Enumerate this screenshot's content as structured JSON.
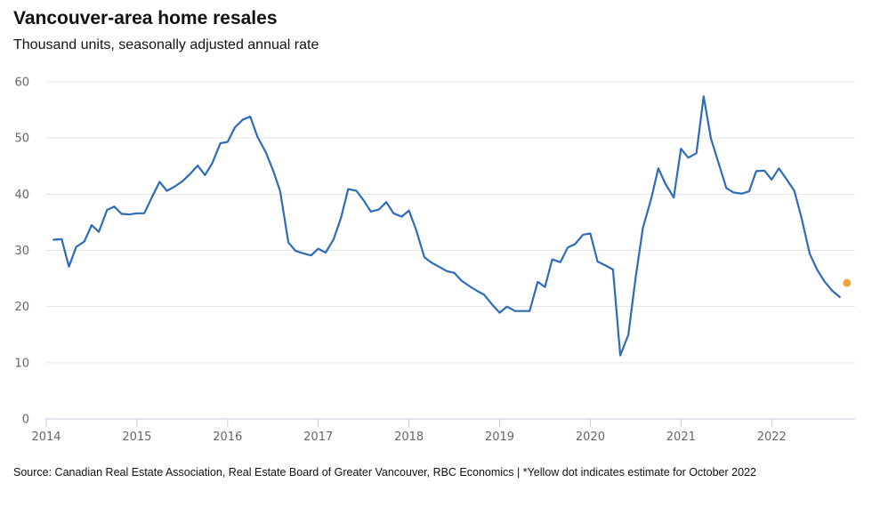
{
  "chart_data": {
    "type": "line",
    "title": "Vancouver-area home resales",
    "subtitle": "Thousand units, seasonally adjusted annual rate",
    "source": "Source: Canadian Real Estate Association, Real Estate Board of Greater Vancouver, RBC Economics | *Yellow dot indicates estimate for October 2022",
    "xlabel": "",
    "ylabel": "",
    "xlim": [
      2014,
      2022.92
    ],
    "ylim": [
      0,
      60
    ],
    "y_ticks": [
      0,
      10,
      20,
      30,
      40,
      50,
      60
    ],
    "x_ticks": [
      2014,
      2015,
      2016,
      2017,
      2018,
      2019,
      2020,
      2021,
      2022
    ],
    "x_tick_labels": [
      "2014",
      "2015",
      "2016",
      "2017",
      "2018",
      "2019",
      "2020",
      "2021",
      "2022"
    ],
    "grid": "horizontal",
    "colors": {
      "series": "#2e6bb8",
      "estimate": "#f0a33a",
      "grid": "#e3e3e3",
      "axis": "#c5cbe0"
    },
    "series": [
      {
        "x": [
          2014.08,
          2014.17,
          2014.25,
          2014.33,
          2014.42,
          2014.5,
          2014.58,
          2014.67,
          2014.75,
          2014.83,
          2014.92,
          2015.0,
          2015.08,
          2015.17,
          2015.25,
          2015.33,
          2015.42,
          2015.5,
          2015.58,
          2015.67,
          2015.75,
          2015.83,
          2015.92,
          2016.0,
          2016.08,
          2016.17,
          2016.25,
          2016.33,
          2016.42,
          2016.5,
          2016.58,
          2016.67,
          2016.75,
          2016.83,
          2016.92,
          2017.0,
          2017.08,
          2017.17,
          2017.25,
          2017.33,
          2017.42,
          2017.5,
          2017.58,
          2017.67,
          2017.75,
          2017.83,
          2017.92,
          2018.0,
          2018.08,
          2018.17,
          2018.25,
          2018.33,
          2018.42,
          2018.5,
          2018.58,
          2018.67,
          2018.75,
          2018.83,
          2018.92,
          2019.0,
          2019.08,
          2019.17,
          2019.25,
          2019.33,
          2019.42,
          2019.5,
          2019.58,
          2019.67,
          2019.75,
          2019.83,
          2019.92,
          2020.0,
          2020.08,
          2020.17,
          2020.25,
          2020.33,
          2020.42,
          2020.5,
          2020.58,
          2020.67,
          2020.75,
          2020.83,
          2020.92,
          2021.0,
          2021.08,
          2021.17,
          2021.25,
          2021.33,
          2021.42,
          2021.5,
          2021.58,
          2021.67,
          2021.75,
          2021.83,
          2021.92,
          2022.0,
          2022.08,
          2022.17,
          2022.25,
          2022.33,
          2022.42,
          2022.5,
          2022.58,
          2022.67,
          2022.75
        ],
        "values": [
          31.9,
          32.0,
          27.1,
          30.6,
          31.6,
          34.5,
          33.3,
          37.2,
          37.8,
          36.5,
          36.4,
          36.6,
          36.6,
          39.6,
          42.2,
          40.6,
          41.4,
          42.3,
          43.5,
          45.1,
          43.4,
          45.5,
          49.1,
          49.3,
          51.9,
          53.3,
          53.8,
          50.2,
          47.5,
          44.3,
          40.5,
          31.4,
          29.9,
          29.5,
          29.1,
          30.3,
          29.6,
          32.0,
          35.8,
          40.9,
          40.6,
          38.9,
          36.9,
          37.3,
          38.6,
          36.6,
          36.0,
          37.1,
          33.6,
          28.8,
          27.8,
          27.1,
          26.3,
          26.0,
          24.6,
          23.6,
          22.8,
          22.1,
          20.3,
          18.9,
          20.0,
          19.2,
          19.2,
          19.2,
          24.4,
          23.5,
          28.4,
          27.9,
          30.5,
          31.1,
          32.8,
          33.0,
          28.0,
          27.3,
          26.6,
          11.3,
          15.0,
          25.2,
          34.0,
          39.1,
          44.6,
          41.8,
          39.4,
          48.1,
          46.5,
          47.3,
          57.4,
          49.9,
          45.3,
          41.1,
          40.3,
          40.1,
          40.5,
          44.1,
          44.2,
          42.6,
          44.6,
          42.5,
          40.6,
          35.7,
          29.4,
          26.6,
          24.5,
          22.8,
          21.7
        ]
      }
    ],
    "estimate": {
      "x": 2022.83,
      "value": 24.2
    }
  }
}
